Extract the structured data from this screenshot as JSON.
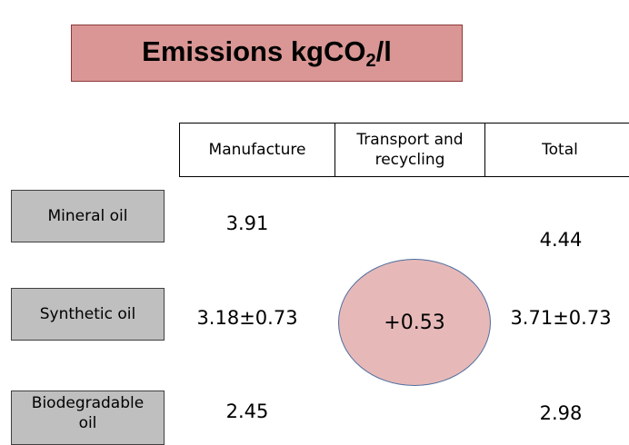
{
  "title": {
    "main": "Emissions kgCO",
    "subscript": "2",
    "suffix": "/l"
  },
  "table": {
    "header": [
      "Manufacture",
      "Transport and recycling",
      "Total"
    ],
    "rows": [
      {
        "label": "Mineral oil",
        "manufacture": "3.91",
        "total": "4.44"
      },
      {
        "label": "Synthetic oil",
        "manufacture": "3.18±0.73",
        "total": "3.71±0.73"
      },
      {
        "label": "Biodegradable oil",
        "manufacture": "2.45",
        "total": "2.98"
      }
    ],
    "transport": "+0.53"
  }
}
